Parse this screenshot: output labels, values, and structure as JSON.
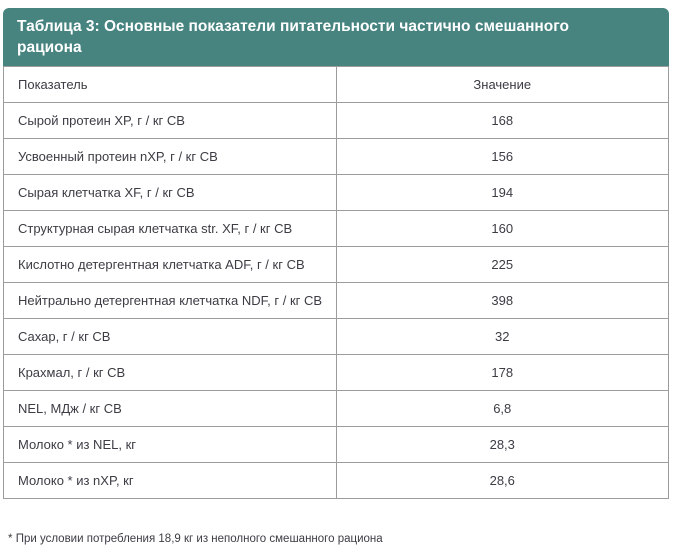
{
  "colors": {
    "header_bg": "#478480",
    "header_text": "#ffffff",
    "border": "#9c9c9c",
    "cell_text": "#3c3c44",
    "page_bg": "#ffffff"
  },
  "table": {
    "title": "Таблица 3: Основные показатели питательности частично смешанного рациона",
    "columns": [
      "Показатель",
      "Значение"
    ],
    "rows": [
      {
        "indicator": "Сырой протеин XP, г / кг СВ",
        "value": "168"
      },
      {
        "indicator": "Усвоенный протеин nXP, г / кг СВ",
        "value": "156"
      },
      {
        "indicator": "Сырая клетчатка XF, г / кг СВ",
        "value": "194"
      },
      {
        "indicator": "Структурная сырая клетчатка str. XF, г / кг СВ",
        "value": "160"
      },
      {
        "indicator": "Кислотно детергентная клетчатка ADF, г / кг СВ",
        "value": "225"
      },
      {
        "indicator": "Нейтрально детергентная клетчатка NDF, г / кг СВ",
        "value": "398"
      },
      {
        "indicator": "Сахар, г / кг СВ",
        "value": "32"
      },
      {
        "indicator": "Крахмал, г / кг СВ",
        "value": "178"
      },
      {
        "indicator": "NEL, МДж / кг СВ",
        "value": "6,8"
      },
      {
        "indicator": "Молоко * из NEL, кг",
        "value": "28,3"
      },
      {
        "indicator": "Молоко * из nXP, кг",
        "value": "28,6"
      }
    ]
  },
  "footnote": {
    "marker": "*",
    "text": "При условии потребления 18,9 кг из неполного смешанного рациона"
  }
}
